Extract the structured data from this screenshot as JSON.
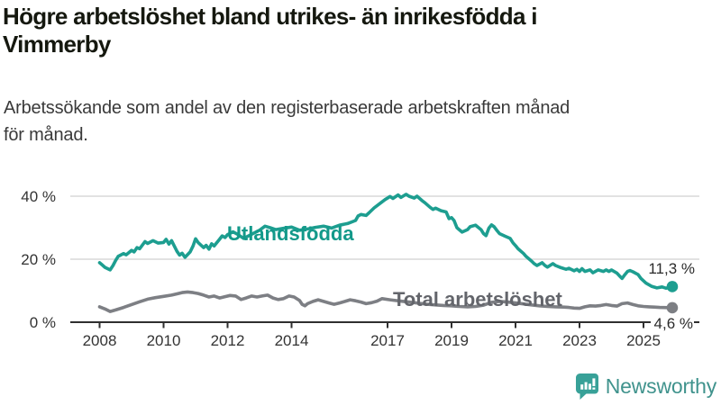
{
  "page": {
    "title": "Högre arbetslöshet bland utrikes- än inrikesfödda i Vimmerby",
    "title_lines": [
      "Högre arbetslöshet bland utrikes- än inrikesfödda i",
      "Vimmerby"
    ],
    "subtitle": "Arbetssökande som andel av den registerbaserade arbetskraften månad för månad.",
    "subtitle_lines": [
      "Arbetssökande som andel av den registerbaserade arbetskraften månad",
      "för månad."
    ]
  },
  "branding": {
    "logo_text": "Newsworthy",
    "logo_text_color": "#40938d",
    "logo_icon_color": "#38a198",
    "logo_icon": "speech-bubble-bar-chart-icon"
  },
  "colors": {
    "accent_teal": "#1d9e90",
    "teal_label": "#13998a",
    "gray_line": "#7d7f84",
    "gray_label": "#63656b",
    "axis": "#2f2f2f",
    "gridline": "#d9d9d9",
    "tick_text": "#333333",
    "value_text": "#2b2b2b"
  },
  "chart_data": {
    "type": "line",
    "title": "Högre arbetslöshet bland utrikes- än inrikesfödda i Vimmerby",
    "xlabel": "",
    "ylabel": "Arbetssökande som andel av den registerbaserade arbetskraften, %",
    "x_unit": "year (monthly data)",
    "grid": true,
    "legend_position": "inline-labels",
    "x_ticks": [
      2008,
      2010,
      2012,
      2014,
      2017,
      2019,
      2021,
      2023,
      2025
    ],
    "x_tick_labels": [
      "2008",
      "2010",
      "2012",
      "2014",
      "2017",
      "2019",
      "2021",
      "2023",
      "2025"
    ],
    "xlim": [
      2007.1,
      2026.7
    ],
    "y_ticks": [
      0,
      20,
      40
    ],
    "y_tick_labels": [
      "0 %",
      "20 %",
      "40 %"
    ],
    "ylim": [
      0,
      46.5
    ],
    "series": [
      {
        "name": "Utlandsfödda",
        "color": "#1d9e90",
        "label_color": "#13998a",
        "end_label": "11,3 %",
        "end_value": 11.3,
        "end_dot": true,
        "points": [
          [
            2008.0,
            18.9
          ],
          [
            2008.08,
            18.2
          ],
          [
            2008.17,
            17.4
          ],
          [
            2008.33,
            16.6
          ],
          [
            2008.42,
            18.0
          ],
          [
            2008.5,
            19.6
          ],
          [
            2008.58,
            20.9
          ],
          [
            2008.75,
            21.8
          ],
          [
            2008.83,
            21.4
          ],
          [
            2009.0,
            22.8
          ],
          [
            2009.08,
            22.3
          ],
          [
            2009.17,
            23.7
          ],
          [
            2009.25,
            23.3
          ],
          [
            2009.42,
            25.6
          ],
          [
            2009.5,
            25.0
          ],
          [
            2009.67,
            25.9
          ],
          [
            2009.83,
            25.1
          ],
          [
            2010.0,
            25.3
          ],
          [
            2010.08,
            26.3
          ],
          [
            2010.17,
            24.8
          ],
          [
            2010.25,
            25.9
          ],
          [
            2010.42,
            22.5
          ],
          [
            2010.5,
            21.3
          ],
          [
            2010.58,
            21.9
          ],
          [
            2010.67,
            20.6
          ],
          [
            2010.83,
            22.3
          ],
          [
            2010.92,
            24.2
          ],
          [
            2011.0,
            26.5
          ],
          [
            2011.08,
            25.3
          ],
          [
            2011.25,
            23.7
          ],
          [
            2011.33,
            24.4
          ],
          [
            2011.42,
            23.2
          ],
          [
            2011.5,
            24.9
          ],
          [
            2011.58,
            24.2
          ],
          [
            2011.75,
            26.3
          ],
          [
            2011.83,
            27.4
          ],
          [
            2011.92,
            26.9
          ],
          [
            2012.0,
            27.8
          ],
          [
            2012.17,
            28.7
          ],
          [
            2012.33,
            27.8
          ],
          [
            2012.5,
            26.6
          ],
          [
            2012.67,
            27.5
          ],
          [
            2012.83,
            28.3
          ],
          [
            2013.0,
            29.2
          ],
          [
            2013.17,
            30.5
          ],
          [
            2013.33,
            30.0
          ],
          [
            2013.5,
            29.4
          ],
          [
            2013.75,
            29.8
          ],
          [
            2014.0,
            30.2
          ],
          [
            2014.25,
            29.2
          ],
          [
            2014.5,
            29.6
          ],
          [
            2014.75,
            30.1
          ],
          [
            2015.0,
            30.5
          ],
          [
            2015.25,
            29.9
          ],
          [
            2015.5,
            30.8
          ],
          [
            2015.75,
            31.3
          ],
          [
            2016.0,
            32.3
          ],
          [
            2016.08,
            33.7
          ],
          [
            2016.17,
            34.2
          ],
          [
            2016.33,
            33.9
          ],
          [
            2016.42,
            34.7
          ],
          [
            2016.58,
            36.3
          ],
          [
            2016.75,
            37.6
          ],
          [
            2016.92,
            38.9
          ],
          [
            2017.08,
            39.9
          ],
          [
            2017.17,
            39.3
          ],
          [
            2017.33,
            40.4
          ],
          [
            2017.42,
            39.6
          ],
          [
            2017.58,
            40.6
          ],
          [
            2017.67,
            40.0
          ],
          [
            2017.83,
            39.4
          ],
          [
            2017.92,
            40.0
          ],
          [
            2018.08,
            38.6
          ],
          [
            2018.17,
            37.9
          ],
          [
            2018.33,
            36.5
          ],
          [
            2018.42,
            35.8
          ],
          [
            2018.5,
            36.2
          ],
          [
            2018.67,
            35.4
          ],
          [
            2018.83,
            35.0
          ],
          [
            2018.92,
            32.9
          ],
          [
            2019.0,
            33.2
          ],
          [
            2019.08,
            32.3
          ],
          [
            2019.17,
            30.0
          ],
          [
            2019.33,
            28.6
          ],
          [
            2019.5,
            29.4
          ],
          [
            2019.58,
            30.3
          ],
          [
            2019.75,
            30.8
          ],
          [
            2019.92,
            29.4
          ],
          [
            2020.0,
            28.1
          ],
          [
            2020.08,
            27.5
          ],
          [
            2020.17,
            29.9
          ],
          [
            2020.25,
            30.9
          ],
          [
            2020.33,
            30.3
          ],
          [
            2020.42,
            29.1
          ],
          [
            2020.5,
            28.1
          ],
          [
            2020.67,
            27.3
          ],
          [
            2020.83,
            26.6
          ],
          [
            2020.92,
            25.2
          ],
          [
            2021.0,
            24.3
          ],
          [
            2021.08,
            23.3
          ],
          [
            2021.25,
            21.8
          ],
          [
            2021.33,
            20.9
          ],
          [
            2021.5,
            19.4
          ],
          [
            2021.58,
            18.6
          ],
          [
            2021.67,
            18.0
          ],
          [
            2021.83,
            18.9
          ],
          [
            2021.92,
            18.0
          ],
          [
            2022.0,
            17.5
          ],
          [
            2022.17,
            18.6
          ],
          [
            2022.25,
            18.0
          ],
          [
            2022.42,
            17.3
          ],
          [
            2022.58,
            16.8
          ],
          [
            2022.67,
            17.1
          ],
          [
            2022.83,
            16.3
          ],
          [
            2022.92,
            16.8
          ],
          [
            2023.0,
            16.1
          ],
          [
            2023.08,
            17.0
          ],
          [
            2023.17,
            16.1
          ],
          [
            2023.33,
            16.6
          ],
          [
            2023.42,
            15.7
          ],
          [
            2023.58,
            16.6
          ],
          [
            2023.75,
            16.1
          ],
          [
            2023.83,
            16.6
          ],
          [
            2023.92,
            16.1
          ],
          [
            2024.0,
            16.6
          ],
          [
            2024.17,
            15.6
          ],
          [
            2024.25,
            14.7
          ],
          [
            2024.33,
            13.9
          ],
          [
            2024.42,
            15.1
          ],
          [
            2024.5,
            16.1
          ],
          [
            2024.58,
            16.4
          ],
          [
            2024.67,
            16.0
          ],
          [
            2024.83,
            15.1
          ],
          [
            2024.92,
            13.9
          ],
          [
            2025.08,
            12.4
          ],
          [
            2025.25,
            11.4
          ],
          [
            2025.42,
            10.9
          ],
          [
            2025.58,
            11.2
          ],
          [
            2025.7,
            10.8
          ],
          [
            2025.9,
            11.3
          ]
        ]
      },
      {
        "name": "Total arbetslöshet",
        "color": "#7d7f84",
        "label_color": "#63656b",
        "end_label": "4,6 %",
        "end_value": 4.6,
        "end_dot": true,
        "points": [
          [
            2008.0,
            4.9
          ],
          [
            2008.17,
            4.2
          ],
          [
            2008.33,
            3.4
          ],
          [
            2008.5,
            3.9
          ],
          [
            2008.75,
            4.7
          ],
          [
            2009.0,
            5.6
          ],
          [
            2009.25,
            6.5
          ],
          [
            2009.5,
            7.3
          ],
          [
            2009.75,
            7.8
          ],
          [
            2010.0,
            8.2
          ],
          [
            2010.25,
            8.6
          ],
          [
            2010.42,
            9.0
          ],
          [
            2010.58,
            9.4
          ],
          [
            2010.75,
            9.6
          ],
          [
            2010.92,
            9.4
          ],
          [
            2011.08,
            9.1
          ],
          [
            2011.25,
            8.6
          ],
          [
            2011.42,
            8.0
          ],
          [
            2011.58,
            8.3
          ],
          [
            2011.75,
            7.7
          ],
          [
            2011.92,
            8.1
          ],
          [
            2012.08,
            8.5
          ],
          [
            2012.25,
            8.3
          ],
          [
            2012.42,
            7.2
          ],
          [
            2012.58,
            7.7
          ],
          [
            2012.75,
            8.3
          ],
          [
            2012.92,
            8.0
          ],
          [
            2013.08,
            8.3
          ],
          [
            2013.25,
            8.6
          ],
          [
            2013.42,
            7.7
          ],
          [
            2013.58,
            7.2
          ],
          [
            2013.75,
            7.5
          ],
          [
            2013.92,
            8.3
          ],
          [
            2014.08,
            8.0
          ],
          [
            2014.25,
            6.9
          ],
          [
            2014.33,
            5.7
          ],
          [
            2014.42,
            5.2
          ],
          [
            2014.5,
            5.9
          ],
          [
            2014.67,
            6.6
          ],
          [
            2014.83,
            7.1
          ],
          [
            2015.0,
            6.6
          ],
          [
            2015.17,
            6.1
          ],
          [
            2015.33,
            5.7
          ],
          [
            2015.5,
            6.1
          ],
          [
            2015.67,
            6.6
          ],
          [
            2015.83,
            7.1
          ],
          [
            2016.0,
            6.8
          ],
          [
            2016.17,
            6.4
          ],
          [
            2016.33,
            5.9
          ],
          [
            2016.5,
            6.2
          ],
          [
            2016.67,
            6.7
          ],
          [
            2016.83,
            7.5
          ],
          [
            2017.08,
            7.1
          ],
          [
            2017.25,
            6.9
          ],
          [
            2017.5,
            6.6
          ],
          [
            2017.75,
            6.3
          ],
          [
            2018.0,
            6.0
          ],
          [
            2018.25,
            5.7
          ],
          [
            2018.5,
            5.5
          ],
          [
            2018.75,
            5.3
          ],
          [
            2019.0,
            5.2
          ],
          [
            2019.25,
            5.0
          ],
          [
            2019.5,
            4.9
          ],
          [
            2019.75,
            5.0
          ],
          [
            2020.0,
            5.4
          ],
          [
            2020.25,
            6.3
          ],
          [
            2020.5,
            6.6
          ],
          [
            2020.75,
            6.4
          ],
          [
            2021.0,
            6.1
          ],
          [
            2021.25,
            5.8
          ],
          [
            2021.5,
            5.5
          ],
          [
            2021.75,
            5.2
          ],
          [
            2022.0,
            5.0
          ],
          [
            2022.25,
            4.9
          ],
          [
            2022.5,
            4.8
          ],
          [
            2022.67,
            4.7
          ],
          [
            2022.83,
            4.5
          ],
          [
            2023.0,
            4.4
          ],
          [
            2023.17,
            4.9
          ],
          [
            2023.33,
            5.2
          ],
          [
            2023.5,
            5.1
          ],
          [
            2023.67,
            5.3
          ],
          [
            2023.83,
            5.6
          ],
          [
            2024.0,
            5.3
          ],
          [
            2024.17,
            5.1
          ],
          [
            2024.33,
            5.9
          ],
          [
            2024.5,
            6.1
          ],
          [
            2024.67,
            5.6
          ],
          [
            2024.83,
            5.2
          ],
          [
            2025.0,
            5.0
          ],
          [
            2025.17,
            4.9
          ],
          [
            2025.33,
            4.8
          ],
          [
            2025.5,
            4.7
          ],
          [
            2025.9,
            4.6
          ]
        ]
      }
    ]
  }
}
